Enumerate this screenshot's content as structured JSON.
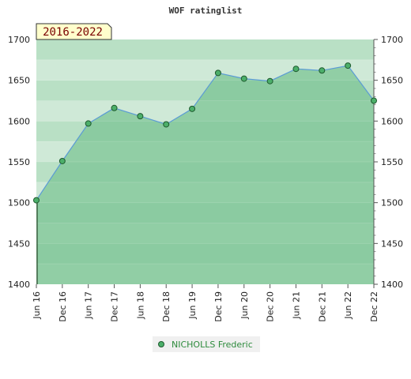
{
  "chart_data": {
    "type": "area",
    "title": "WOF ratinglist",
    "period_label": "2016-2022",
    "categories": [
      "Jun 16",
      "Dec 16",
      "Jun 17",
      "Dec 17",
      "Jun 18",
      "Dec 18",
      "Jun 19",
      "Dec 19",
      "Jun 20",
      "Dec 20",
      "Jun 21",
      "Dec 21",
      "Jun 22",
      "Dec 22"
    ],
    "series": [
      {
        "name": "NICHOLLS Frederic",
        "values": [
          1503,
          1551,
          1597,
          1616,
          1606,
          1596,
          1615,
          1659,
          1652,
          1649,
          1664,
          1662,
          1668,
          1625
        ]
      }
    ],
    "ylim": [
      1400,
      1700
    ],
    "yticks": [
      1400,
      1450,
      1500,
      1550,
      1600,
      1650,
      1700
    ],
    "xlabel": "",
    "ylabel": "",
    "legend_position": "bottom-center",
    "grid": true,
    "colors": {
      "line": "#5b9bd5",
      "fill": "#7cc494",
      "marker": "#4caf6a",
      "marker_stroke": "#1e5a2e",
      "badge_bg": "#ffffcc",
      "badge_text": "#7a0000"
    }
  }
}
